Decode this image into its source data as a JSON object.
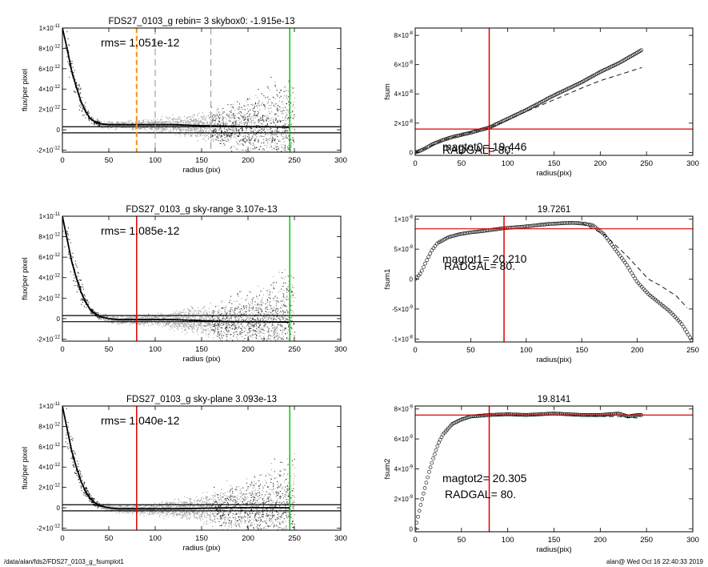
{
  "footer": {
    "left": "/data/alan/fds2/FDS27_0103_g_fsumplot1",
    "right": "alan@  Wed Oct 16 22:40:33 2019"
  },
  "colors": {
    "red": "#e00000",
    "green": "#00cc00",
    "orange": "#ff8c00",
    "scatter_dark": "#222222",
    "scatter_light": "#a0a0a0",
    "marker": "#000000"
  },
  "chart_data": [
    {
      "id": "p1",
      "type": "scatter",
      "title": "FDS27_0103_g rebin= 3    skybox0: -1.915e-13",
      "annotations": [
        "rms= 1.051e-12"
      ],
      "xlabel": "radius (pix)",
      "ylabel": "flux/per pixel",
      "xlim": [
        0,
        300
      ],
      "ylim": [
        -2.2e-12,
        1e-11
      ],
      "xticks": [
        "0",
        "50",
        "100",
        "150",
        "200",
        "250",
        "300"
      ],
      "yticks": [
        {
          "v": -2e-12,
          "m": "-2",
          "e": "-12"
        },
        {
          "v": 0,
          "m": "0",
          "e": ""
        },
        {
          "v": 2e-12,
          "m": "2",
          "e": "-12"
        },
        {
          "v": 4e-12,
          "m": "4",
          "e": "-12"
        },
        {
          "v": 6e-12,
          "m": "6",
          "e": "-12"
        },
        {
          "v": 8e-12,
          "m": "8",
          "e": "-12"
        },
        {
          "v": 1e-11,
          "m": "1",
          "e": "-11"
        }
      ],
      "profile": {
        "x": [
          0,
          5,
          10,
          15,
          20,
          25,
          30,
          35,
          40,
          50,
          60,
          80,
          100,
          120,
          150,
          180,
          200,
          220,
          245
        ],
        "y": [
          1e-11,
          8e-12,
          5.8e-12,
          4.2e-12,
          2.8e-12,
          1.8e-12,
          1.1e-12,
          8e-13,
          6e-13,
          5e-13,
          5e-13,
          5e-13,
          5e-13,
          5e-13,
          4e-13,
          3.5e-13,
          3e-13,
          3e-13,
          2.5e-13
        ]
      },
      "hlines": [
        {
          "y": 3e-13,
          "color": "#000000"
        },
        {
          "y": -3e-13,
          "color": "#000000"
        }
      ],
      "vlines": [
        {
          "x": 80,
          "color": "#ff8c00",
          "dash": "6,4",
          "width": 2
        },
        {
          "x": 100,
          "color": "#909090",
          "dash": "8,5",
          "width": 1
        },
        {
          "x": 160,
          "color": "#909090",
          "dash": "8,5",
          "width": 1
        },
        {
          "x": 245,
          "color": "#00cc00",
          "dash": "",
          "width": 1.5
        }
      ]
    },
    {
      "id": "p2",
      "type": "scatter",
      "title": "FDS27_0103_g sky-range  3.107e-13",
      "annotations": [
        "rms= 1.085e-12"
      ],
      "xlabel": "radius (pix)",
      "ylabel": "flux/per pixel",
      "xlim": [
        0,
        300
      ],
      "ylim": [
        -2.2e-12,
        1e-11
      ],
      "xticks": [
        "0",
        "50",
        "100",
        "150",
        "200",
        "250",
        "300"
      ],
      "yticks": [
        {
          "v": -2e-12,
          "m": "-2",
          "e": "-12"
        },
        {
          "v": 0,
          "m": "0",
          "e": ""
        },
        {
          "v": 2e-12,
          "m": "2",
          "e": "-12"
        },
        {
          "v": 4e-12,
          "m": "4",
          "e": "-12"
        },
        {
          "v": 6e-12,
          "m": "6",
          "e": "-12"
        },
        {
          "v": 8e-12,
          "m": "8",
          "e": "-12"
        },
        {
          "v": 1e-11,
          "m": "1",
          "e": "-11"
        }
      ],
      "profile": {
        "x": [
          0,
          5,
          10,
          15,
          20,
          25,
          30,
          35,
          40,
          50,
          60,
          80,
          100,
          120,
          150,
          180,
          200,
          220,
          245
        ],
        "y": [
          1e-11,
          7.8e-12,
          5.6e-12,
          4e-12,
          2.6e-12,
          1.6e-12,
          9e-13,
          5e-13,
          2e-13,
          0,
          -1e-13,
          -1e-13,
          -1e-13,
          -1e-13,
          -2e-13,
          -3e-13,
          -3e-13,
          -3e-13,
          -3.5e-13
        ]
      },
      "hlines": [
        {
          "y": 3e-13,
          "color": "#000000"
        },
        {
          "y": -3e-13,
          "color": "#000000"
        }
      ],
      "vlines": [
        {
          "x": 80,
          "color": "#e00000",
          "dash": "",
          "width": 1.5
        },
        {
          "x": 245,
          "color": "#00cc00",
          "dash": "",
          "width": 1.5
        }
      ]
    },
    {
      "id": "p3",
      "type": "scatter",
      "title": "FDS27_0103_g sky-plane  3.093e-13",
      "annotations": [
        "rms= 1.040e-12"
      ],
      "xlabel": "radius (pix)",
      "ylabel": "flux/per pixel",
      "xlim": [
        0,
        300
      ],
      "ylim": [
        -2.2e-12,
        1e-11
      ],
      "xticks": [
        "0",
        "50",
        "100",
        "150",
        "200",
        "250",
        "300"
      ],
      "yticks": [
        {
          "v": -2e-12,
          "m": "-2",
          "e": "-12"
        },
        {
          "v": 0,
          "m": "0",
          "e": ""
        },
        {
          "v": 2e-12,
          "m": "2",
          "e": "-12"
        },
        {
          "v": 4e-12,
          "m": "4",
          "e": "-12"
        },
        {
          "v": 6e-12,
          "m": "6",
          "e": "-12"
        },
        {
          "v": 8e-12,
          "m": "8",
          "e": "-12"
        },
        {
          "v": 1e-11,
          "m": "1",
          "e": "-11"
        }
      ],
      "profile": {
        "x": [
          0,
          5,
          10,
          15,
          20,
          25,
          30,
          35,
          40,
          50,
          60,
          80,
          100,
          120,
          150,
          180,
          200,
          220,
          245
        ],
        "y": [
          1e-11,
          7.8e-12,
          5.6e-12,
          4e-12,
          2.6e-12,
          1.6e-12,
          9e-13,
          5e-13,
          2e-13,
          0,
          -1e-13,
          -1e-13,
          -1e-13,
          -1e-13,
          -5e-14,
          0,
          0,
          0,
          0
        ]
      },
      "hlines": [
        {
          "y": 3e-13,
          "color": "#000000"
        },
        {
          "y": -3e-13,
          "color": "#000000"
        }
      ],
      "vlines": [
        {
          "x": 80,
          "color": "#e00000",
          "dash": "",
          "width": 1.5
        },
        {
          "x": 245,
          "color": "#00cc00",
          "dash": "",
          "width": 1.5
        }
      ]
    },
    {
      "id": "p4",
      "type": "scatter",
      "title": "",
      "annotations": [
        "magtot0= 19.446",
        "RADGAL=    80."
      ],
      "xlabel": "radius(pix)",
      "ylabel": "fsum",
      "xlim": [
        0,
        300
      ],
      "ylim": [
        -2e-09,
        8.5e-08
      ],
      "xticks": [
        "0",
        "50",
        "100",
        "150",
        "200",
        "250",
        "300"
      ],
      "yticks": [
        {
          "v": 0,
          "m": "0",
          "e": ""
        },
        {
          "v": 2e-08,
          "m": "2",
          "e": "-8"
        },
        {
          "v": 4e-08,
          "m": "4",
          "e": "-8"
        },
        {
          "v": 6e-08,
          "m": "6",
          "e": "-8"
        },
        {
          "v": 8e-08,
          "m": "8",
          "e": "-8"
        }
      ],
      "markers": {
        "x": [
          0,
          5,
          10,
          20,
          30,
          40,
          50,
          60,
          80,
          100,
          120,
          150,
          180,
          200,
          220,
          245
        ],
        "y": [
          0,
          1e-09,
          2.5e-09,
          6e-09,
          8.5e-09,
          1.05e-08,
          1.2e-08,
          1.35e-08,
          1.7e-08,
          2.3e-08,
          2.9e-08,
          3.9e-08,
          4.8e-08,
          5.5e-08,
          6.1e-08,
          7e-08
        ]
      },
      "dashed": {
        "x": [
          0,
          10,
          30,
          50,
          80,
          100,
          120,
          150,
          180,
          200,
          220,
          245
        ],
        "y": [
          0,
          2.5e-09,
          8.5e-09,
          1.2e-08,
          1.7e-08,
          2.2e-08,
          2.8e-08,
          3.6e-08,
          4.4e-08,
          4.9e-08,
          5.3e-08,
          5.8e-08
        ]
      },
      "vlines": [
        {
          "x": 80,
          "color": "#e00000"
        }
      ],
      "hlines": [
        {
          "y": 1.6e-08,
          "color": "#e00000"
        }
      ]
    },
    {
      "id": "p5",
      "type": "scatter",
      "title": "19.7261",
      "annotations": [
        "magtot1= 20.210",
        "RADGAL=    80."
      ],
      "xlabel": "radius(pix)",
      "ylabel": "fsum1",
      "xlim": [
        0,
        250
      ],
      "ylim": [
        -1.05e-08,
        1.05e-08
      ],
      "xticks": [
        "0",
        "50",
        "100",
        "150",
        "200",
        "250"
      ],
      "yticks": [
        {
          "v": -1e-08,
          "m": "-1",
          "e": "-8"
        },
        {
          "v": -5e-09,
          "m": "-5",
          "e": "-9"
        },
        {
          "v": 0,
          "m": "0",
          "e": ""
        },
        {
          "v": 5e-09,
          "m": "5",
          "e": "-9"
        },
        {
          "v": 1e-08,
          "m": "1",
          "e": "-8"
        }
      ],
      "markers": {
        "x": [
          0,
          5,
          10,
          15,
          20,
          30,
          40,
          50,
          60,
          80,
          100,
          120,
          140,
          150,
          160,
          170,
          180,
          190,
          200,
          210,
          220,
          230,
          240,
          250
        ],
        "y": [
          0,
          1e-09,
          3e-09,
          4.8e-09,
          6e-09,
          7e-09,
          7.5e-09,
          7.8e-09,
          8e-09,
          8.5e-09,
          8.8e-09,
          9.2e-09,
          9.4e-09,
          9.3e-09,
          9e-09,
          7.5e-09,
          5e-09,
          2.5e-09,
          -5e-10,
          -2.5e-09,
          -4e-09,
          -5.5e-09,
          -7.5e-09,
          -1.05e-08
        ]
      },
      "dashed": {
        "x": [
          150,
          170,
          190,
          200,
          210,
          220,
          235,
          245
        ],
        "y": [
          9.3e-09,
          7.5e-09,
          4e-09,
          2e-09,
          0,
          -1e-09,
          -2.8e-09,
          -4.8e-09
        ]
      },
      "vlines": [
        {
          "x": 80,
          "color": "#e00000"
        }
      ],
      "hlines": [
        {
          "y": 8.4e-09,
          "color": "#e00000"
        }
      ]
    },
    {
      "id": "p6",
      "type": "scatter",
      "title": "19.8141",
      "annotations": [
        "magtot2=  20.305",
        "RADGAL=     80."
      ],
      "xlabel": "radius(pix)",
      "ylabel": "fsum2",
      "xlim": [
        0,
        300
      ],
      "ylim": [
        -2e-10,
        8.2e-09
      ],
      "xticks": [
        "0",
        "50",
        "100",
        "150",
        "200",
        "250",
        "300"
      ],
      "yticks": [
        {
          "v": 0,
          "m": "0",
          "e": ""
        },
        {
          "v": 2e-09,
          "m": "2",
          "e": "-9"
        },
        {
          "v": 4e-09,
          "m": "4",
          "e": "-9"
        },
        {
          "v": 6e-09,
          "m": "6",
          "e": "-9"
        },
        {
          "v": 8e-09,
          "m": "8",
          "e": "-9"
        }
      ],
      "markers": {
        "x": [
          0,
          3,
          6,
          10,
          15,
          20,
          25,
          30,
          40,
          50,
          60,
          70,
          80,
          100,
          120,
          150,
          180,
          200,
          220,
          230,
          240,
          245
        ],
        "y": [
          0,
          8e-10,
          1.6e-09,
          2.6e-09,
          3.8e-09,
          4.8e-09,
          5.7e-09,
          6.3e-09,
          7e-09,
          7.3e-09,
          7.5e-09,
          7.55e-09,
          7.6e-09,
          7.65e-09,
          7.6e-09,
          7.7e-09,
          7.6e-09,
          7.6e-09,
          7.7e-09,
          7.5e-09,
          7.6e-09,
          7.6e-09
        ]
      },
      "dashed": {
        "x": [
          80,
          120,
          150,
          180,
          200,
          220,
          240
        ],
        "y": [
          7.6e-09,
          7.6e-09,
          7.6e-09,
          7.6e-09,
          7.5e-09,
          7.5e-09,
          7.4e-09
        ]
      },
      "vlines": [
        {
          "x": 80,
          "color": "#e00000"
        }
      ],
      "hlines": [
        {
          "y": 7.6e-09,
          "color": "#e00000"
        }
      ]
    }
  ]
}
